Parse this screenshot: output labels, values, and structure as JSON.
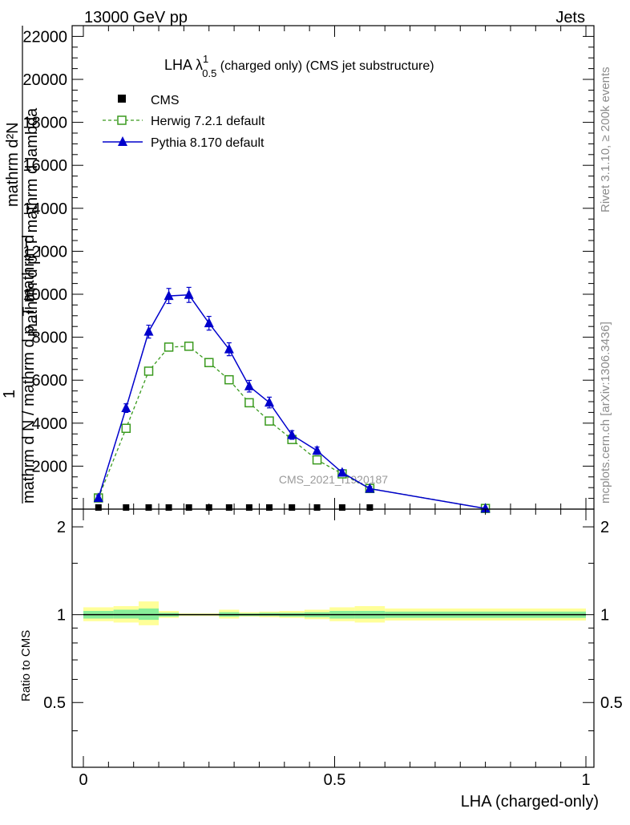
{
  "header": {
    "left": "13000 GeV pp",
    "right": "Jets"
  },
  "side_labels": {
    "rivet": "Rivet 3.1.10, ≥ 200k events",
    "mcplots": "mcplots.cern.ch [arXiv:1306.3436]"
  },
  "watermark": "CMS_2021_I1920187",
  "chart_data": [
    {
      "type": "line",
      "panel": "main",
      "title": {
        "main": "LHA λ",
        "sup": "1",
        "sub": "0.5",
        "rest": " (charged only) (CMS jet substructure)"
      },
      "ylabel": {
        "top": "mathrm d²N",
        "bottom": "mathrm d p_T mathrm d lambda",
        "prefix": "1",
        "inner": "mathrm d N / mathrm d p_T mathrm d"
      },
      "xlim": [
        0,
        1
      ],
      "ylim": [
        0,
        22500
      ],
      "yticks": [
        {
          "value": 2000,
          "label": "2000"
        },
        {
          "value": 4000,
          "label": "4000"
        },
        {
          "value": 6000,
          "label": "6000"
        },
        {
          "value": 8000,
          "label": "8000"
        },
        {
          "value": 10000,
          "label": "10000"
        },
        {
          "value": 12000,
          "label": "12000"
        },
        {
          "value": 14000,
          "label": "14000"
        },
        {
          "value": 16000,
          "label": "16000"
        },
        {
          "value": 18000,
          "label": "18000"
        },
        {
          "value": 20000,
          "label": "20000"
        },
        {
          "value": 22000,
          "label": "22000"
        }
      ],
      "legend_position": "top-left",
      "series": [
        {
          "name": "CMS",
          "color": "#000000",
          "marker": "filled-square",
          "x": [
            0.03,
            0.085,
            0.13,
            0.17,
            0.21,
            0.25,
            0.29,
            0.33,
            0.37,
            0.415,
            0.465,
            0.515,
            0.57
          ],
          "y": [
            0,
            0,
            0,
            0,
            0,
            0,
            0,
            0,
            0,
            0,
            0,
            0,
            0
          ]
        },
        {
          "name": "Herwig 7.2.1 default",
          "color": "#3a9a1e",
          "marker": "open-square",
          "dashed": true,
          "x": [
            0.03,
            0.085,
            0.13,
            0.17,
            0.21,
            0.25,
            0.29,
            0.33,
            0.37,
            0.415,
            0.465,
            0.515,
            0.57,
            0.8
          ],
          "y": [
            520,
            3760,
            6420,
            7540,
            7580,
            6820,
            6020,
            4950,
            4100,
            3240,
            2290,
            1640,
            960,
            30
          ]
        },
        {
          "name": "Pythia 8.170 default",
          "color": "#0000cc",
          "marker": "filled-triangle",
          "dashed": false,
          "x": [
            0.03,
            0.085,
            0.13,
            0.17,
            0.21,
            0.25,
            0.29,
            0.33,
            0.37,
            0.415,
            0.465,
            0.515,
            0.57,
            0.8
          ],
          "y": [
            520,
            4700,
            8260,
            9920,
            9970,
            8650,
            7440,
            5720,
            4960,
            3450,
            2720,
            1700,
            950,
            30
          ],
          "yerr": [
            120,
            200,
            300,
            350,
            350,
            320,
            300,
            270,
            250,
            200,
            170,
            130,
            100,
            10
          ]
        }
      ]
    },
    {
      "type": "area",
      "panel": "ratio",
      "ylabel": "Ratio to CMS",
      "xlabel": "LHA (charged-only)",
      "xlim": [
        0,
        1
      ],
      "ylim": [
        0.3,
        2.3
      ],
      "yscale": "log",
      "yticks": [
        {
          "value": 0.5,
          "label": "0.5"
        },
        {
          "value": 1,
          "label": "1"
        },
        {
          "value": 2,
          "label": "2"
        }
      ],
      "xticks": [
        {
          "value": 0,
          "label": "0"
        },
        {
          "value": 0.5,
          "label": "0.5"
        },
        {
          "value": 1,
          "label": "1"
        }
      ],
      "bins": [
        {
          "x0": 0.0,
          "x1": 0.06,
          "inner": [
            0.97,
            1.03
          ],
          "outer": [
            0.95,
            1.06
          ]
        },
        {
          "x0": 0.06,
          "x1": 0.11,
          "inner": [
            0.97,
            1.04
          ],
          "outer": [
            0.94,
            1.07
          ]
        },
        {
          "x0": 0.11,
          "x1": 0.15,
          "inner": [
            0.96,
            1.05
          ],
          "outer": [
            0.92,
            1.11
          ]
        },
        {
          "x0": 0.15,
          "x1": 0.19,
          "inner": [
            0.985,
            1.015
          ],
          "outer": [
            0.975,
            1.03
          ]
        },
        {
          "x0": 0.19,
          "x1": 0.23,
          "inner": [
            0.995,
            1.005
          ],
          "outer": [
            0.99,
            1.01
          ]
        },
        {
          "x0": 0.23,
          "x1": 0.27,
          "inner": [
            0.995,
            1.005
          ],
          "outer": [
            0.99,
            1.01
          ]
        },
        {
          "x0": 0.27,
          "x1": 0.31,
          "inner": [
            0.985,
            1.02
          ],
          "outer": [
            0.97,
            1.04
          ]
        },
        {
          "x0": 0.31,
          "x1": 0.35,
          "inner": [
            0.99,
            1.01
          ],
          "outer": [
            0.985,
            1.02
          ]
        },
        {
          "x0": 0.35,
          "x1": 0.39,
          "inner": [
            0.99,
            1.015
          ],
          "outer": [
            0.98,
            1.025
          ]
        },
        {
          "x0": 0.39,
          "x1": 0.44,
          "inner": [
            0.985,
            1.015
          ],
          "outer": [
            0.975,
            1.03
          ]
        },
        {
          "x0": 0.44,
          "x1": 0.49,
          "inner": [
            0.98,
            1.02
          ],
          "outer": [
            0.965,
            1.04
          ]
        },
        {
          "x0": 0.49,
          "x1": 0.54,
          "inner": [
            0.97,
            1.03
          ],
          "outer": [
            0.95,
            1.06
          ]
        },
        {
          "x0": 0.54,
          "x1": 0.6,
          "inner": [
            0.97,
            1.03
          ],
          "outer": [
            0.94,
            1.07
          ]
        },
        {
          "x0": 0.6,
          "x1": 1.0,
          "inner": [
            0.975,
            1.025
          ],
          "outer": [
            0.955,
            1.05
          ]
        }
      ]
    }
  ]
}
